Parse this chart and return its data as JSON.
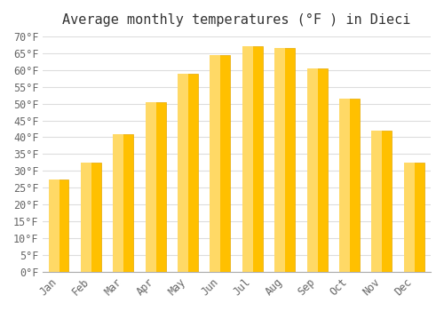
{
  "title": "Average monthly temperatures (°F ) in Dieci",
  "months": [
    "Jan",
    "Feb",
    "Mar",
    "Apr",
    "May",
    "Jun",
    "Jul",
    "Aug",
    "Sep",
    "Oct",
    "Nov",
    "Dec"
  ],
  "values": [
    27.5,
    32.5,
    41.0,
    50.5,
    59.0,
    64.5,
    67.0,
    66.5,
    60.5,
    51.5,
    42.0,
    32.5
  ],
  "bar_color_top": "#FFC000",
  "bar_color_bottom": "#FFD966",
  "ylim": [
    0,
    70
  ],
  "yticks": [
    0,
    5,
    10,
    15,
    20,
    25,
    30,
    35,
    40,
    45,
    50,
    55,
    60,
    65,
    70
  ],
  "background_color": "#ffffff",
  "grid_color": "#dddddd",
  "title_fontsize": 11,
  "tick_fontsize": 8.5,
  "font_family": "monospace"
}
